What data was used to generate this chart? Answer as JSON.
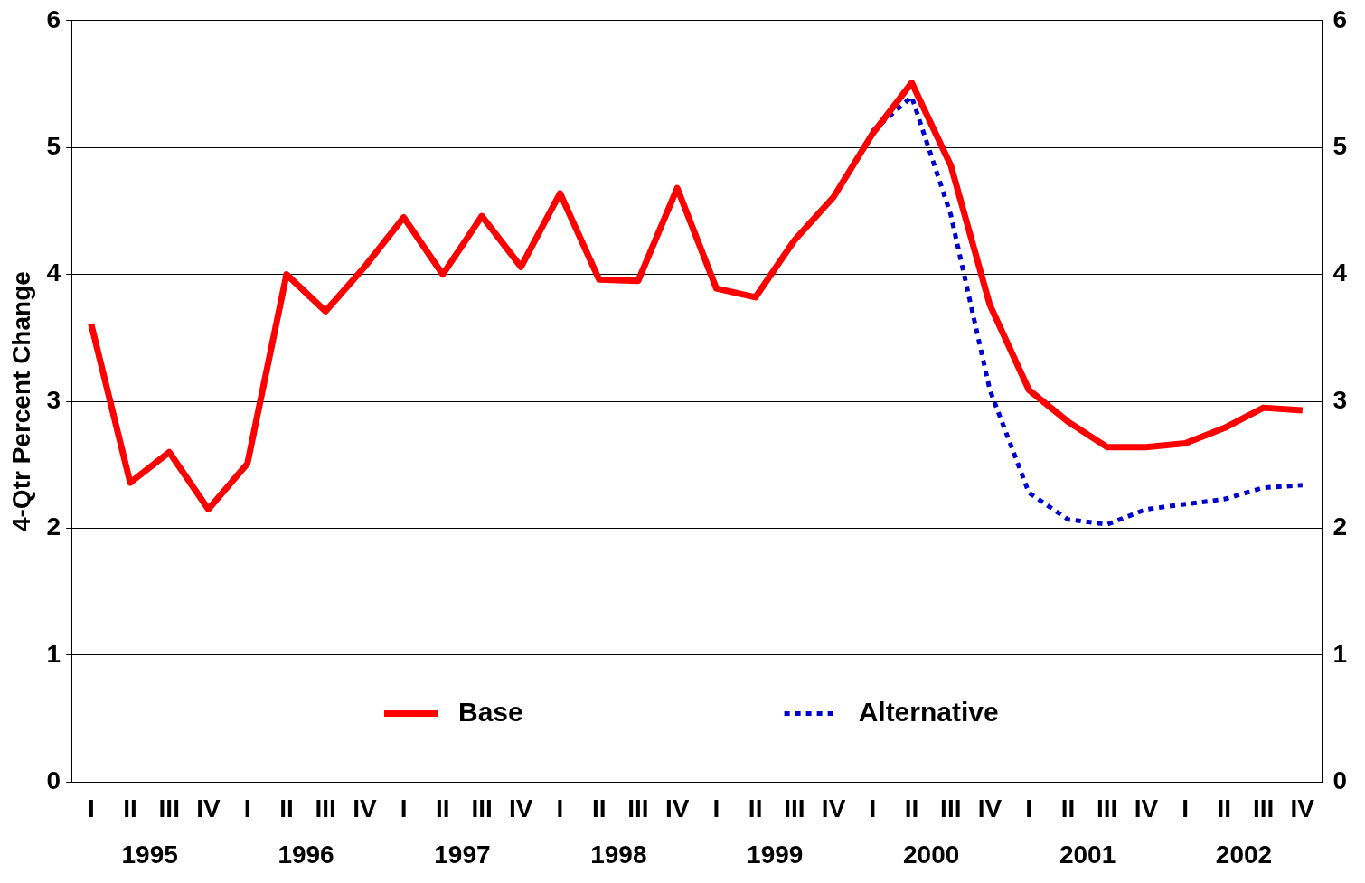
{
  "chart_data": {
    "type": "line",
    "ylabel": "4-Qtr Percent Change",
    "categories": [
      "I",
      "II",
      "III",
      "IV",
      "I",
      "II",
      "III",
      "IV",
      "I",
      "II",
      "III",
      "IV",
      "I",
      "II",
      "III",
      "IV",
      "I",
      "II",
      "III",
      "IV",
      "I",
      "II",
      "III",
      "IV",
      "I",
      "II",
      "III",
      "IV",
      "I",
      "II",
      "III",
      "IV"
    ],
    "annotations": [
      "1995",
      "1996",
      "1997",
      "1998",
      "1999",
      "2000",
      "2001",
      "2002"
    ],
    "series": [
      {
        "name": "Base",
        "color": "#ff0000",
        "line_style": "solid",
        "values": [
          3.61,
          2.36,
          2.6,
          2.15,
          2.51,
          4.0,
          3.71,
          4.06,
          4.45,
          4.0,
          4.46,
          4.06,
          4.64,
          3.96,
          3.95,
          4.68,
          3.89,
          3.82,
          4.27,
          4.61,
          5.11,
          5.51,
          4.86,
          3.76,
          3.09,
          2.84,
          2.64,
          2.64,
          2.67,
          2.79,
          2.95,
          2.93
        ]
      },
      {
        "name": "Alternative",
        "color": "#0000cc",
        "line_style": "dotted",
        "values": [
          null,
          null,
          null,
          null,
          null,
          null,
          null,
          null,
          null,
          null,
          null,
          null,
          null,
          null,
          null,
          null,
          null,
          null,
          null,
          null,
          5.13,
          5.4,
          4.47,
          3.09,
          2.28,
          2.07,
          2.03,
          2.15,
          2.19,
          2.23,
          2.32,
          2.34
        ]
      }
    ],
    "ylim": [
      0,
      6
    ],
    "yticks": [
      0,
      1,
      2,
      3,
      4,
      5,
      6
    ],
    "y2lim": [
      0,
      6
    ],
    "y2ticks": [
      0,
      1,
      2,
      3,
      4,
      5,
      6
    ],
    "grid": "y",
    "legend": "bottom",
    "marker": "none"
  }
}
